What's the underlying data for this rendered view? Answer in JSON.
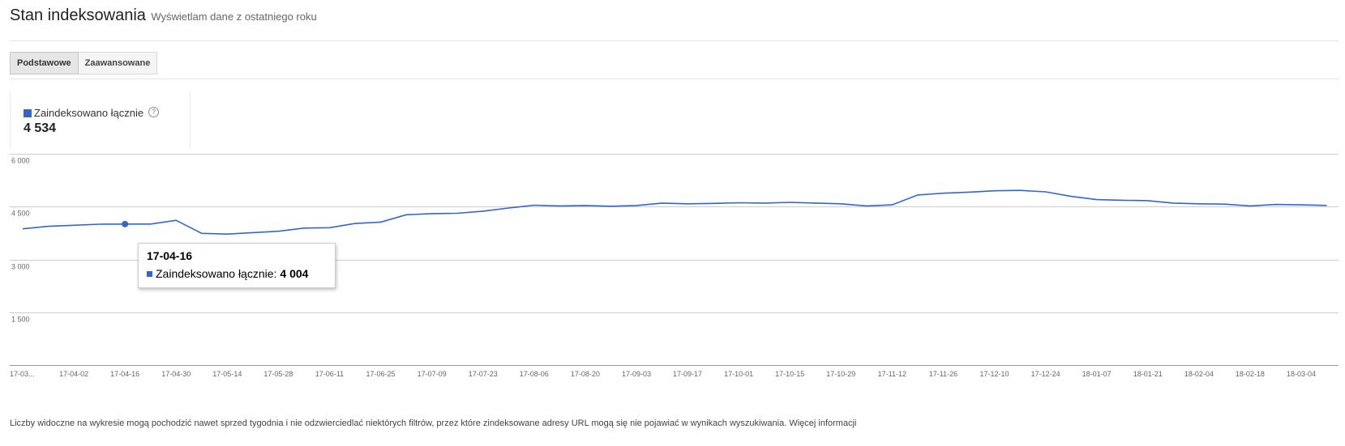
{
  "header": {
    "title": "Stan indeksowania",
    "subtitle": "Wyświetlam dane z ostatniego roku"
  },
  "tabs": [
    {
      "label": "Podstawowe",
      "active": true
    },
    {
      "label": "Zaawansowane",
      "active": false
    }
  ],
  "summary": {
    "legend_label": "Zaindeksowano łącznie",
    "help_glyph": "?",
    "value": "4 534",
    "color": "#3366cc"
  },
  "chart_data": {
    "type": "line",
    "ylim": [
      0,
      6000
    ],
    "y_ticks": [
      "1 500",
      "3 000",
      "4 500",
      "6 000"
    ],
    "y_tick_values": [
      1500,
      3000,
      4500,
      6000
    ],
    "x_tick_labels": [
      "17-03...",
      "17-04-02",
      "17-04-16",
      "17-04-30",
      "17-05-14",
      "17-05-28",
      "17-06-11",
      "17-06-25",
      "17-07-09",
      "17-07-23",
      "17-08-06",
      "17-08-20",
      "17-09-03",
      "17-09-17",
      "17-10-01",
      "17-10-15",
      "17-10-29",
      "17-11-12",
      "17-11-26",
      "17-12-10",
      "17-12-24",
      "18-01-07",
      "18-01-21",
      "18-02-04",
      "18-02-18",
      "18-03-04"
    ],
    "grid": true,
    "series": [
      {
        "name": "Zaindeksowano łącznie",
        "color": "#3366cc",
        "points": [
          [
            "17-03-19",
            3870
          ],
          [
            "17-03-26",
            3940
          ],
          [
            "17-04-02",
            3970
          ],
          [
            "17-04-09",
            4000
          ],
          [
            "17-04-16",
            4004
          ],
          [
            "17-04-23",
            4004
          ],
          [
            "17-04-30",
            4110
          ],
          [
            "17-05-07",
            3740
          ],
          [
            "17-05-14",
            3720
          ],
          [
            "17-05-21",
            3760
          ],
          [
            "17-05-28",
            3800
          ],
          [
            "17-06-04",
            3890
          ],
          [
            "17-06-11",
            3900
          ],
          [
            "17-06-18",
            4020
          ],
          [
            "17-06-25",
            4060
          ],
          [
            "17-07-02",
            4270
          ],
          [
            "17-07-09",
            4300
          ],
          [
            "17-07-16",
            4310
          ],
          [
            "17-07-23",
            4370
          ],
          [
            "17-07-30",
            4460
          ],
          [
            "17-08-06",
            4540
          ],
          [
            "17-08-13",
            4520
          ],
          [
            "17-08-20",
            4530
          ],
          [
            "17-08-27",
            4510
          ],
          [
            "17-09-03",
            4530
          ],
          [
            "17-09-10",
            4600
          ],
          [
            "17-09-17",
            4580
          ],
          [
            "17-09-24",
            4590
          ],
          [
            "17-10-01",
            4610
          ],
          [
            "17-10-08",
            4600
          ],
          [
            "17-10-15",
            4620
          ],
          [
            "17-10-22",
            4600
          ],
          [
            "17-10-29",
            4580
          ],
          [
            "17-11-05",
            4520
          ],
          [
            "17-11-12",
            4550
          ],
          [
            "17-11-19",
            4830
          ],
          [
            "17-11-26",
            4880
          ],
          [
            "17-12-03",
            4910
          ],
          [
            "17-12-10",
            4950
          ],
          [
            "17-12-17",
            4960
          ],
          [
            "17-12-24",
            4920
          ],
          [
            "17-12-31",
            4790
          ],
          [
            "18-01-07",
            4700
          ],
          [
            "18-01-14",
            4680
          ],
          [
            "18-01-21",
            4670
          ],
          [
            "18-01-28",
            4600
          ],
          [
            "18-02-04",
            4580
          ],
          [
            "18-02-11",
            4570
          ],
          [
            "18-02-18",
            4520
          ],
          [
            "18-02-25",
            4560
          ],
          [
            "18-03-04",
            4550
          ],
          [
            "18-03-11",
            4534
          ]
        ]
      }
    ],
    "tooltip": {
      "date": "17-04-16",
      "series_label": "Zaindeksowano łącznie:",
      "value": "4 004",
      "highlight_point": [
        "17-04-16",
        4004
      ]
    }
  },
  "footer": {
    "text": "Liczby widoczne na wykresie mogą pochodzić nawet sprzed tygodnia i nie odzwierciedlać niektórych filtrów, przez które zindeksowane adresy URL mogą się nie pojawiać w wynikach wyszukiwania.",
    "link_label": "Więcej informacji"
  }
}
